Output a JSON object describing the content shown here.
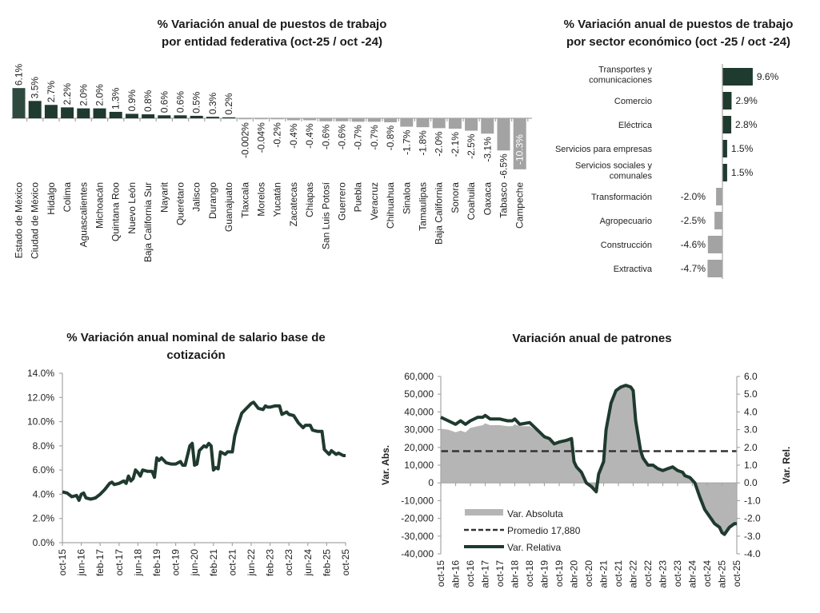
{
  "colors": {
    "dark_green": "#1f3a2e",
    "first_bar": "#2e4a3f",
    "gray": "#a3a3a3",
    "area_gray": "#b5b5b5",
    "dash": "#333333"
  },
  "chart_data": [
    {
      "type": "bar",
      "title": [
        "% Variación anual de puestos de trabajo",
        "por entidad federativa (oct-25 / oct -24)"
      ],
      "categories": [
        "Estado de México",
        "Ciudad de México",
        "Hidalgo",
        "Colima",
        "Aguascalientes",
        "Michoacán",
        "Quintana Roo",
        "Nuevo León",
        "Baja California Sur",
        "Nayarit",
        "Querétaro",
        "Jalisco",
        "Durango",
        "Guanajuato",
        "Tlaxcala",
        "Morelos",
        "Yucatán",
        "Zacatecas",
        "Chiapas",
        "San Luis Potosí",
        "Guerrero",
        "Puebla",
        "Veracruz",
        "Chihuahua",
        "Sinaloa",
        "Tamaulipas",
        "Baja California",
        "Sonora",
        "Coahuila",
        "Oaxaca",
        "Tabasco",
        "Campeche"
      ],
      "values": [
        6.1,
        3.5,
        2.7,
        2.2,
        2.0,
        2.0,
        1.3,
        0.9,
        0.8,
        0.6,
        0.6,
        0.5,
        0.3,
        0.2,
        -0.002,
        -0.04,
        -0.2,
        -0.4,
        -0.4,
        -0.6,
        -0.6,
        -0.7,
        -0.7,
        -0.8,
        -1.7,
        -1.8,
        -2.0,
        -2.1,
        -2.5,
        -3.1,
        -6.5,
        -10.3
      ],
      "labels": [
        "6.1%",
        "3.5%",
        "2.7%",
        "2.2%",
        "2.0%",
        "2.0%",
        "1.3%",
        "0.9%",
        "0.8%",
        "0.6%",
        "0.6%",
        "0.5%",
        "0.3%",
        "0.2%",
        "-0.002%",
        "-0.04%",
        "-0.2%",
        "-0.4%",
        "-0.4%",
        "-0.6%",
        "-0.6%",
        "-0.7%",
        "-0.7%",
        "-0.8%",
        "-1.7%",
        "-1.8%",
        "-2.0%",
        "-2.1%",
        "-2.5%",
        "-3.1%",
        "-6.5%",
        "-10.3%"
      ]
    },
    {
      "type": "bar",
      "orientation": "horizontal",
      "title": [
        "% Variación anual de puestos de trabajo",
        "por sector económico (oct -25 / oct -24)"
      ],
      "categories": [
        [
          "Transportes y",
          "comunicaciones"
        ],
        [
          "Comercio"
        ],
        [
          "Eléctrica"
        ],
        [
          "Servicios para empresas"
        ],
        [
          "Servicios sociales y",
          "comunales"
        ],
        [
          "Transformación"
        ],
        [
          "Agropecuario"
        ],
        [
          "Construcción"
        ],
        [
          "Extractiva"
        ]
      ],
      "values": [
        9.6,
        2.9,
        2.8,
        1.5,
        1.5,
        -2.0,
        -2.5,
        -4.6,
        -4.7
      ],
      "labels": [
        "9.6%",
        "2.9%",
        "2.8%",
        "1.5%",
        "1.5%",
        "-2.0%",
        "-2.5%",
        "-4.6%",
        "-4.7%"
      ]
    },
    {
      "type": "line",
      "title": [
        "% Variación anual nominal de salario base de",
        "cotización"
      ],
      "ylim": [
        0,
        14
      ],
      "yticks": [
        "0.0%",
        "2.0%",
        "4.0%",
        "6.0%",
        "8.0%",
        "10.0%",
        "12.0%",
        "14.0%"
      ],
      "xticks": [
        "oct-15",
        "jun-16",
        "feb-17",
        "oct-17",
        "jun-18",
        "feb-19",
        "oct-19",
        "jun-20",
        "feb-21",
        "oct-21",
        "jun-22",
        "feb-23",
        "oct-23",
        "jun-24",
        "feb-25",
        "oct-25"
      ],
      "x": [
        "oct-15",
        "dic-15",
        "feb-16",
        "abr-16",
        "may-16",
        "jun-16",
        "jul-16",
        "ago-16",
        "oct-16",
        "dic-16",
        "feb-17",
        "abr-17",
        "jun-17",
        "jul-17",
        "ago-17",
        "oct-17",
        "dic-17",
        "ene-18",
        "feb-18",
        "mar-18",
        "abr-18",
        "may-18",
        "jun-18",
        "jul-18",
        "ago-18",
        "oct-18",
        "dic-18",
        "ene-19",
        "feb-19",
        "mar-19",
        "abr-19",
        "jun-19",
        "ago-19",
        "oct-19",
        "dic-19",
        "ene-20",
        "feb-20",
        "abr-20",
        "may-20",
        "jun-20",
        "jul-20",
        "ago-20",
        "oct-20",
        "nov-20",
        "dic-20",
        "ene-21",
        "feb-21",
        "mar-21",
        "abr-21",
        "may-21",
        "jul-21",
        "ago-21",
        "oct-21",
        "nov-21",
        "dic-21",
        "feb-22",
        "abr-22",
        "jun-22",
        "jul-22",
        "sep-22",
        "nov-22",
        "dic-22",
        "ene-23",
        "feb-23",
        "abr-23",
        "jun-23",
        "jul-23",
        "sep-23",
        "oct-23",
        "dic-23",
        "feb-24",
        "abr-24",
        "may-24",
        "jul-24",
        "ago-24",
        "oct-24",
        "dic-24",
        "ene-25",
        "mar-25",
        "abr-25",
        "jun-25",
        "jul-25",
        "sep-25",
        "oct-25"
      ],
      "y": [
        4.2,
        4.1,
        3.8,
        3.9,
        3.5,
        4.0,
        4.1,
        3.7,
        3.6,
        3.7,
        4.0,
        4.4,
        4.9,
        5.0,
        4.8,
        4.9,
        5.1,
        4.9,
        5.5,
        5.1,
        5.3,
        6.0,
        5.8,
        5.5,
        6.0,
        5.9,
        5.9,
        5.4,
        7.0,
        6.8,
        7.0,
        6.6,
        6.5,
        6.5,
        6.7,
        6.4,
        6.4,
        8.0,
        8.2,
        6.4,
        6.5,
        7.6,
        8.0,
        7.9,
        8.2,
        8.0,
        6.0,
        6.2,
        6.1,
        7.5,
        7.3,
        7.5,
        7.5,
        8.8,
        9.5,
        10.7,
        11.1,
        11.5,
        11.6,
        11.1,
        11.0,
        11.3,
        11.2,
        11.2,
        11.3,
        11.3,
        10.6,
        10.8,
        10.6,
        10.5,
        9.9,
        9.5,
        9.7,
        9.7,
        9.3,
        9.2,
        9.2,
        7.7,
        7.3,
        7.6,
        7.3,
        7.4,
        7.2,
        7.2
      ]
    },
    {
      "type": "area+line",
      "title": "Variación anual de patrones",
      "ylabel": "Var. Abs.",
      "y2label": "Var. Rel.",
      "ylim": [
        -40000,
        60000
      ],
      "y2lim": [
        -4.0,
        6.0
      ],
      "yticks": [
        "60,000",
        "50,000",
        "40,000",
        "30,000",
        "20,000",
        "10,000",
        "0",
        "-10,000",
        "-20,000",
        "-30,000",
        "-40,000"
      ],
      "y2ticks": [
        "6.0",
        "5.0",
        "4.0",
        "3.0",
        "2.0",
        "1.0",
        "0.0",
        "-1.0",
        "-2.0",
        "-3.0",
        "-4.0"
      ],
      "xticks": [
        "oct-15",
        "abr-16",
        "oct-16",
        "abr-17",
        "oct-17",
        "abr-18",
        "oct-18",
        "abr-19",
        "oct-19",
        "abr-20",
        "oct-20",
        "abr-21",
        "oct-21",
        "abr-22",
        "oct-22",
        "abr-23",
        "oct-23",
        "abr-24",
        "oct-24",
        "abr-25",
        "oct-25"
      ],
      "legend": [
        "Var. Absoluta",
        "Promedio 17,880",
        "Var. Relativa"
      ],
      "legend_position": "bottom-left",
      "average": 17880,
      "x": [
        "oct-15",
        "ene-16",
        "abr-16",
        "jun-16",
        "ago-16",
        "oct-16",
        "ene-17",
        "mar-17",
        "abr-17",
        "jun-17",
        "ago-17",
        "oct-17",
        "ene-18",
        "mar-18",
        "abr-18",
        "jun-18",
        "oct-18",
        "ene-19",
        "abr-19",
        "jun-19",
        "ago-19",
        "oct-19",
        "ene-20",
        "mar-20",
        "abr-20",
        "may-20",
        "jul-20",
        "sep-20",
        "nov-20",
        "ene-21",
        "feb-21",
        "abr-21",
        "may-21",
        "jul-21",
        "sep-21",
        "nov-21",
        "ene-22",
        "mar-22",
        "abr-22",
        "may-22",
        "jul-22",
        "ago-22",
        "oct-22",
        "dic-22",
        "feb-23",
        "abr-23",
        "jun-23",
        "ago-23",
        "oct-23",
        "dic-23",
        "ene-24",
        "mar-24",
        "may-24",
        "jul-24",
        "sep-24",
        "nov-24",
        "ene-25",
        "mar-25",
        "abr-25",
        "may-25",
        "jul-25",
        "sep-25",
        "oct-25"
      ],
      "series": [
        {
          "name": "Var. Absoluta",
          "axis": "left",
          "values": [
            30500,
            30000,
            28500,
            29500,
            28500,
            31000,
            32000,
            32500,
            33500,
            32500,
            32500,
            32500,
            32000,
            32000,
            33000,
            32000,
            32000,
            29000,
            26000,
            25000,
            22000,
            23000,
            24000,
            25000,
            12000,
            9000,
            6000,
            0,
            -2000,
            -5000,
            5000,
            12000,
            30000,
            45000,
            52000,
            54000,
            55000,
            54000,
            52000,
            35000,
            18000,
            14000,
            10000,
            10000,
            8000,
            7000,
            8000,
            9000,
            7000,
            6000,
            4000,
            3000,
            0,
            -8000,
            -15000,
            -19000,
            -23000,
            -25000,
            -28000,
            -29000,
            -25000,
            -23000,
            -23000
          ]
        },
        {
          "name": "Var. Relativa",
          "axis": "right",
          "values": [
            3.7,
            3.5,
            3.3,
            3.5,
            3.3,
            3.5,
            3.7,
            3.7,
            3.8,
            3.6,
            3.6,
            3.6,
            3.5,
            3.5,
            3.6,
            3.3,
            3.4,
            3.0,
            2.6,
            2.5,
            2.2,
            2.3,
            2.4,
            2.5,
            1.2,
            0.9,
            0.6,
            0.0,
            -0.2,
            -0.5,
            0.5,
            1.2,
            3.0,
            4.5,
            5.2,
            5.4,
            5.5,
            5.4,
            5.2,
            3.5,
            1.8,
            1.4,
            1.0,
            1.0,
            0.8,
            0.7,
            0.8,
            0.9,
            0.7,
            0.6,
            0.4,
            0.3,
            0.0,
            -0.8,
            -1.5,
            -1.9,
            -2.3,
            -2.5,
            -2.8,
            -2.9,
            -2.5,
            -2.3,
            -2.3
          ]
        }
      ]
    }
  ]
}
